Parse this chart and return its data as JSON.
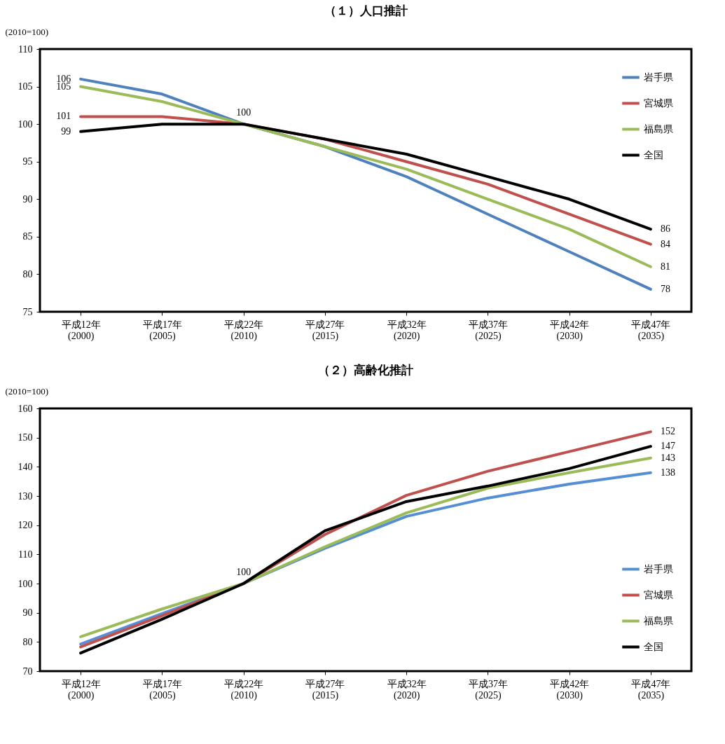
{
  "chart_data": [
    {
      "type": "line",
      "title": "（１）人口推計",
      "ylabel": "(2010=100)",
      "categories": [
        "平成12年\n(2000)",
        "平成17年\n(2005)",
        "平成22年\n(2010)",
        "平成27年\n(2015)",
        "平成32年\n(2020)",
        "平成37年\n(2025)",
        "平成42年\n(2030)",
        "平成47年\n(2035)"
      ],
      "ylim": [
        75,
        110
      ],
      "yticks": [
        75,
        80,
        85,
        90,
        95,
        100,
        105,
        110
      ],
      "grid": false,
      "legend": "top right",
      "marker": "none",
      "line_style": "solid",
      "series": [
        {
          "name": "岩手県",
          "color": "#4f81bd",
          "values": [
            106,
            104,
            100,
            97,
            93,
            88,
            83,
            78
          ],
          "value_labels": [
            "106",
            null,
            null,
            null,
            null,
            null,
            null,
            "78"
          ]
        },
        {
          "name": "宮城県",
          "color": "#c0504d",
          "values": [
            101,
            101,
            100,
            98,
            95,
            92,
            88,
            84
          ],
          "value_labels": [
            "101",
            null,
            null,
            null,
            null,
            null,
            null,
            "84"
          ]
        },
        {
          "name": "福島県",
          "color": "#9bbb59",
          "values": [
            105,
            103,
            100,
            97,
            94,
            90,
            86,
            81
          ],
          "value_labels": [
            "105",
            null,
            null,
            null,
            null,
            null,
            null,
            "81"
          ]
        },
        {
          "name": "全国",
          "color": "#000000",
          "values": [
            99,
            100,
            100,
            98,
            96,
            93,
            90,
            86
          ],
          "value_labels": [
            "99",
            null,
            "100",
            null,
            null,
            null,
            null,
            "86"
          ]
        }
      ]
    },
    {
      "type": "line",
      "title": "（２）高齢化推計",
      "ylabel": "(2010=100)",
      "categories": [
        "平成12年\n(2000)",
        "平成17年\n(2005)",
        "平成22年\n(2010)",
        "平成27年\n(2015)",
        "平成32年\n(2020)",
        "平成37年\n(2025)",
        "平成42年\n(2030)",
        "平成47年\n(2035)"
      ],
      "ylim": [
        70,
        160
      ],
      "yticks": [
        70,
        80,
        90,
        100,
        110,
        120,
        130,
        140,
        150,
        160
      ],
      "grid": false,
      "legend": "bottom right",
      "marker": "none",
      "line_style": "solid",
      "series": [
        {
          "name": "岩手県",
          "color": "#558ed5",
          "values": [
            79.3,
            89.7,
            100,
            112.1,
            123,
            129.3,
            134.1,
            138
          ],
          "value_labels": [
            null,
            null,
            null,
            null,
            null,
            null,
            null,
            "138"
          ]
        },
        {
          "name": "宮城県",
          "color": "#c0504d",
          "values": [
            78.3,
            89,
            100,
            116.8,
            130.2,
            138.5,
            145.2,
            152
          ],
          "value_labels": [
            null,
            null,
            null,
            null,
            null,
            null,
            null,
            "152"
          ]
        },
        {
          "name": "福島県",
          "color": "#9bbb59",
          "values": [
            81.8,
            91.3,
            100,
            112.6,
            124.2,
            132.7,
            138,
            143
          ],
          "value_labels": [
            null,
            null,
            null,
            null,
            null,
            null,
            null,
            "143"
          ]
        },
        {
          "name": "全国",
          "color": "#000000",
          "values": [
            76.2,
            87.8,
            100,
            118.1,
            128.1,
            133.4,
            139.4,
            147
          ],
          "value_labels": [
            null,
            null,
            "100",
            null,
            null,
            null,
            null,
            "147"
          ]
        }
      ]
    }
  ]
}
